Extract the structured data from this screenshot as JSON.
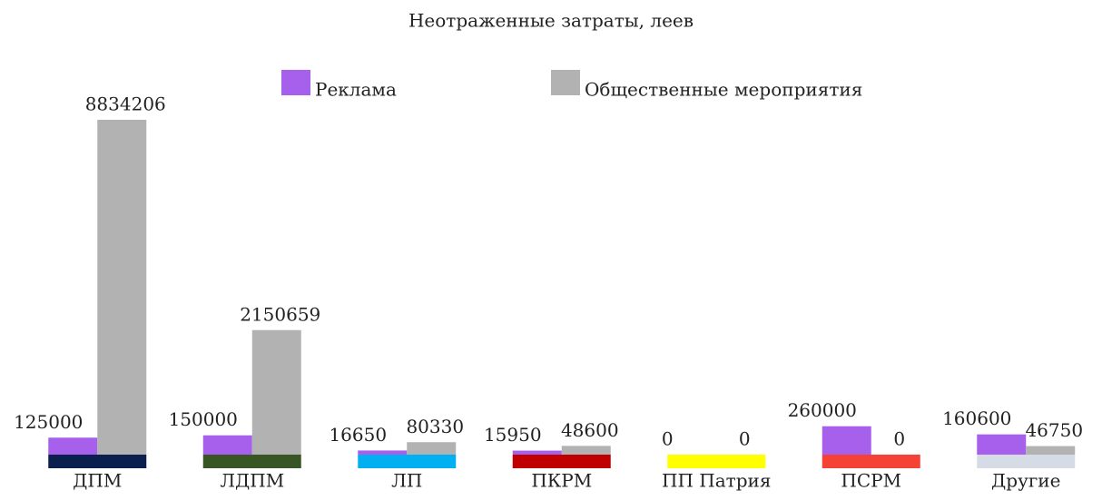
{
  "chart_data": {
    "type": "bar",
    "title": "Неотраженные затраты, леев",
    "categories": [
      "ДПМ",
      "ЛДПМ",
      "ЛП",
      "ПКРМ",
      "ПП Патрия",
      "ПСРМ",
      "Другие"
    ],
    "category_colors": [
      "#0b1f4f",
      "#375623",
      "#00b0f0",
      "#c00000",
      "#ffff00",
      "#f44336",
      "#d6dce5"
    ],
    "series": [
      {
        "name": "Реклама",
        "color": "#a760ec",
        "values": [
          125000,
          150000,
          16650,
          15950,
          0,
          260000,
          160600
        ]
      },
      {
        "name": "Общественные мероприятия",
        "color": "#b2b2b2",
        "values": [
          8834206,
          2150659,
          80330,
          48600,
          0,
          0,
          46750
        ]
      }
    ],
    "legend": "top"
  }
}
